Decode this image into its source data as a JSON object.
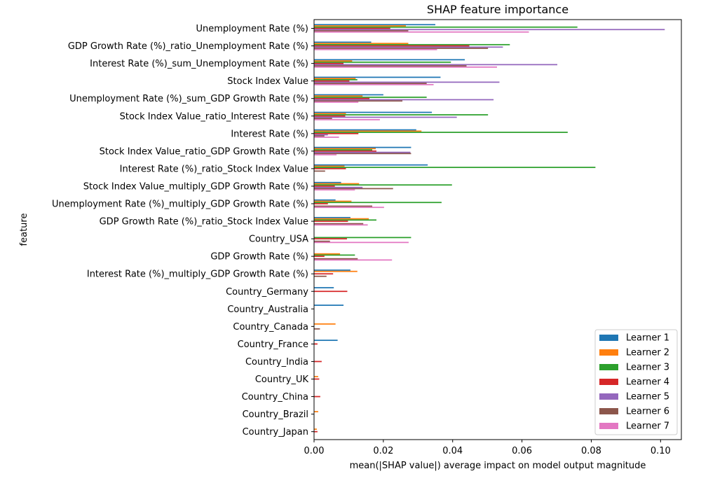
{
  "chart_data": {
    "type": "bar",
    "orientation": "horizontal",
    "title": "SHAP feature importance",
    "xlabel": "mean(|SHAP value|) average impact on model output magnitude",
    "ylabel": "feature",
    "xlim": [
      0,
      0.106
    ],
    "xticks": [
      0.0,
      0.02,
      0.04,
      0.06,
      0.08,
      0.1
    ],
    "xtick_labels": [
      "0.00",
      "0.02",
      "0.04",
      "0.06",
      "0.08",
      "0.10"
    ],
    "grid": false,
    "legend_position": "lower-right",
    "categories": [
      "Unemployment Rate (%)",
      "GDP Growth Rate (%)_ratio_Unemployment Rate (%)",
      "Interest Rate (%)_sum_Unemployment Rate (%)",
      "Stock Index Value",
      "Unemployment Rate (%)_sum_GDP Growth Rate (%)",
      "Stock Index Value_ratio_Interest Rate (%)",
      "Interest Rate (%)",
      "Stock Index Value_ratio_GDP Growth Rate (%)",
      "Interest Rate (%)_ratio_Stock Index Value",
      "Stock Index Value_multiply_GDP Growth Rate (%)",
      "Unemployment Rate (%)_multiply_GDP Growth Rate (%)",
      "GDP Growth Rate (%)_ratio_Stock Index Value",
      "Country_USA",
      "GDP Growth Rate (%)",
      "Interest Rate (%)_multiply_GDP Growth Rate (%)",
      "Country_Germany",
      "Country_Australia",
      "Country_Canada",
      "Country_France",
      "Country_India",
      "Country_UK",
      "Country_China",
      "Country_Brazil",
      "Country_Japan"
    ],
    "series": [
      {
        "name": "Learner 1",
        "color": "#1f77b4",
        "values": [
          0.035,
          0.0165,
          0.0435,
          0.0365,
          0.02,
          0.034,
          0.0295,
          0.028,
          0.0328,
          0.0078,
          0.0062,
          0.0105,
          0.0,
          0.0,
          0.0105,
          0.0057,
          0.0085,
          0.0,
          0.0068,
          0.0,
          0.0,
          0.0,
          0.0,
          0.0
        ]
      },
      {
        "name": "Learner 2",
        "color": "#ff7f0e",
        "values": [
          0.0265,
          0.0272,
          0.011,
          0.012,
          0.014,
          0.0092,
          0.031,
          0.0178,
          0.0088,
          0.013,
          0.0108,
          0.0158,
          0.0,
          0.0075,
          0.0125,
          0.0,
          0.0,
          0.0062,
          0.0,
          0.0,
          0.0012,
          0.0,
          0.0012,
          0.0008
        ]
      },
      {
        "name": "Learner 3",
        "color": "#2ca02c",
        "values": [
          0.076,
          0.0565,
          0.0395,
          0.0125,
          0.0325,
          0.0502,
          0.0732,
          0.0168,
          0.0812,
          0.0398,
          0.0368,
          0.018,
          0.028,
          0.0118,
          0.0,
          0.0,
          0.0,
          0.0,
          0.0,
          0.0,
          0.0,
          0.0,
          0.0,
          0.0
        ]
      },
      {
        "name": "Learner 4",
        "color": "#d62728",
        "values": [
          0.022,
          0.0448,
          0.0085,
          0.0102,
          0.016,
          0.009,
          0.0128,
          0.018,
          0.0092,
          0.006,
          0.004,
          0.0098,
          0.0095,
          0.003,
          0.0055,
          0.0096,
          0.0,
          0.0,
          0.001,
          0.0022,
          0.0015,
          0.0018,
          0.0,
          0.001
        ]
      },
      {
        "name": "Learner 5",
        "color": "#9467bd",
        "values": [
          0.1012,
          0.0545,
          0.0702,
          0.0535,
          0.0518,
          0.0412,
          0.004,
          0.0278,
          0.0,
          0.014,
          0.0,
          0.0,
          0.0,
          0.0,
          0.0,
          0.0,
          0.0,
          0.0,
          0.0,
          0.0,
          0.0,
          0.0,
          0.0,
          0.0
        ]
      },
      {
        "name": "Learner 6",
        "color": "#8c564b",
        "values": [
          0.0272,
          0.0502,
          0.044,
          0.0325,
          0.0255,
          0.0052,
          0.003,
          0.028,
          0.0032,
          0.0228,
          0.0168,
          0.0142,
          0.0046,
          0.0126,
          0.0036,
          0.0,
          0.0,
          0.0017,
          0.0,
          0.0,
          0.0,
          0.0,
          0.0,
          0.0
        ]
      },
      {
        "name": "Learner 7",
        "color": "#e377c2",
        "values": [
          0.062,
          0.0355,
          0.0528,
          0.0345,
          0.0128,
          0.019,
          0.0072,
          0.0065,
          0.0,
          0.0118,
          0.0202,
          0.0155,
          0.0273,
          0.0225,
          0.0,
          0.0,
          0.0,
          0.0,
          0.0,
          0.0,
          0.0,
          0.0,
          0.0,
          0.0
        ]
      }
    ]
  }
}
